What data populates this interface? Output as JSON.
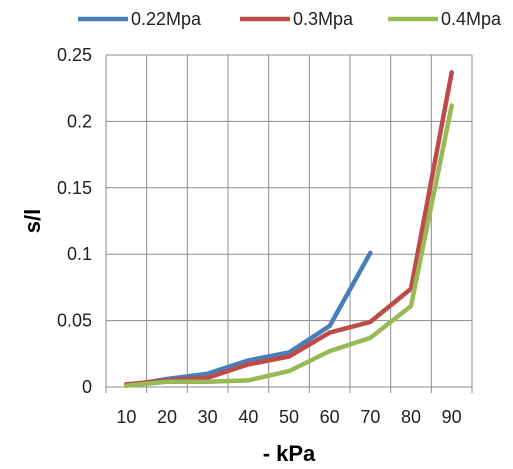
{
  "chart_data": {
    "type": "line",
    "x": [
      10,
      20,
      30,
      40,
      50,
      60,
      70,
      80,
      90
    ],
    "series": [
      {
        "name": "0.22Mpa",
        "color": "#4A7EBB",
        "values": [
          0.001,
          0.006,
          0.01,
          0.02,
          0.026,
          0.046,
          0.101,
          null,
          null
        ]
      },
      {
        "name": "0.3Mpa",
        "color": "#BE4B48",
        "values": [
          0.002,
          0.005,
          0.007,
          0.017,
          0.023,
          0.041,
          0.049,
          0.074,
          0.237
        ]
      },
      {
        "name": "0.4Mpa",
        "color": "#98B954",
        "values": [
          0.001,
          0.004,
          0.004,
          0.005,
          0.012,
          0.027,
          0.037,
          0.061,
          0.212
        ]
      }
    ],
    "xlabel": "- kPa",
    "ylabel": "s/l",
    "ylim": [
      0,
      0.25
    ],
    "yticks": [
      0,
      0.05,
      0.1,
      0.15,
      0.2,
      0.25
    ],
    "ytick_labels": [
      "0",
      "0.05",
      "0.1",
      "0.15",
      "0.2",
      "0.25"
    ],
    "xtick_labels": [
      "10",
      "20",
      "30",
      "40",
      "50",
      "60",
      "70",
      "80",
      "90"
    ],
    "grid": true,
    "legend_position": "top"
  }
}
